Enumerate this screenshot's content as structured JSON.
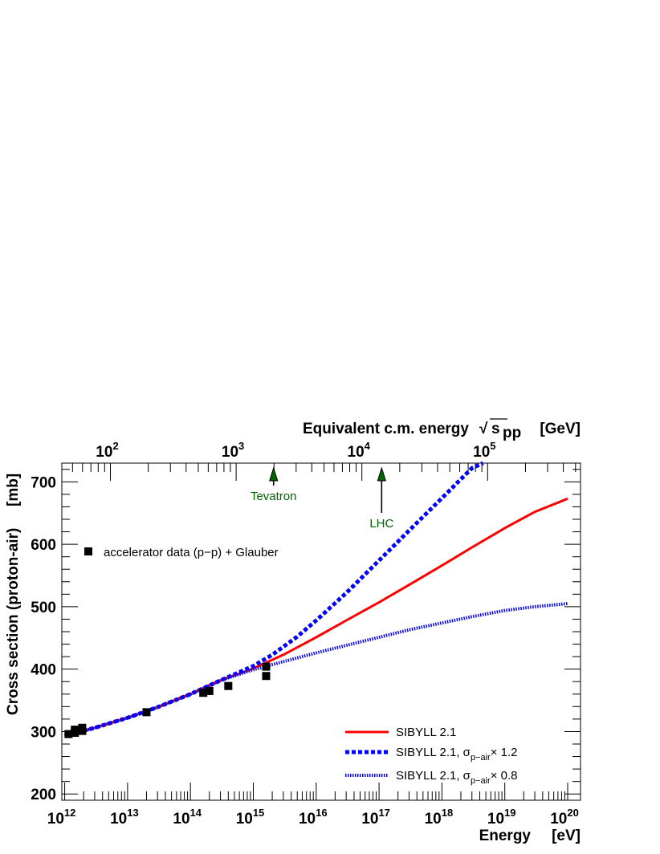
{
  "chart_data": {
    "type": "line",
    "xlabel": "Energy",
    "xlabel_unit": "[eV]",
    "ylabel": "Cross section (proton-air)",
    "ylabel_unit": "[mb]",
    "top_axis_label": "Equivalent c.m. energy",
    "top_axis_sqrt": "√",
    "top_axis_s": "s",
    "top_axis_sub": "pp",
    "top_axis_unit": "[GeV]",
    "x_scale": "log",
    "xlim": [
      900000000000.0,
      1.6e+20
    ],
    "ylim": [
      190,
      730
    ],
    "x_tick_labels": [
      {
        "value": 1000000000000.0,
        "base": "10",
        "exp": "12"
      },
      {
        "value": 10000000000000.0,
        "base": "10",
        "exp": "13"
      },
      {
        "value": 100000000000000.0,
        "base": "10",
        "exp": "14"
      },
      {
        "value": 1000000000000000.0,
        "base": "10",
        "exp": "15"
      },
      {
        "value": 1e+16,
        "base": "10",
        "exp": "16"
      },
      {
        "value": 1e+17,
        "base": "10",
        "exp": "17"
      },
      {
        "value": 1e+18,
        "base": "10",
        "exp": "18"
      },
      {
        "value": 1e+19,
        "base": "10",
        "exp": "19"
      },
      {
        "value": 1e+20,
        "base": "10",
        "exp": "20"
      }
    ],
    "y_ticks": [
      200,
      300,
      400,
      500,
      600,
      700
    ],
    "top_tick_labels": [
      {
        "gev": 100,
        "base": "10",
        "exp": "2"
      },
      {
        "gev": 1000,
        "base": "10",
        "exp": "3"
      },
      {
        "gev": 10000,
        "base": "10",
        "exp": "4"
      },
      {
        "gev": 100000,
        "base": "10",
        "exp": "5"
      }
    ],
    "series": [
      {
        "name": "SIBYLL 2.1",
        "color": "#ff0000",
        "style": "solid",
        "points": [
          [
            1000000000000.0,
            293
          ],
          [
            3000000000000.0,
            306
          ],
          [
            10000000000000.0,
            322
          ],
          [
            30000000000000.0,
            339
          ],
          [
            100000000000000.0,
            360
          ],
          [
            300000000000000.0,
            382
          ],
          [
            1000000000000000.0,
            401
          ],
          [
            3000000000000000.0,
            423
          ],
          [
            1e+16,
            451
          ],
          [
            3e+16,
            478
          ],
          [
            1e+17,
            507
          ],
          [
            3e+17,
            535
          ],
          [
            1e+18,
            566
          ],
          [
            3e+18,
            595
          ],
          [
            1e+19,
            626
          ],
          [
            3e+19,
            652
          ],
          [
            1e+20,
            673
          ]
        ]
      },
      {
        "name": "SIBYLL 2.1, σp-air× 1.2",
        "legend_main": "SIBYLL 2.1, σ",
        "legend_sub": "p−air",
        "legend_tail": "× 1.2",
        "color": "#0000ff",
        "style": "dashed-thick",
        "points": [
          [
            1000000000000.0,
            293
          ],
          [
            3000000000000.0,
            306
          ],
          [
            10000000000000.0,
            322
          ],
          [
            30000000000000.0,
            339
          ],
          [
            100000000000000.0,
            360
          ],
          [
            300000000000000.0,
            382
          ],
          [
            1000000000000000.0,
            405
          ],
          [
            2000000000000000.0,
            423
          ],
          [
            5000000000000000.0,
            452
          ],
          [
            1e+16,
            478
          ],
          [
            3e+16,
            522
          ],
          [
            1e+17,
            574
          ],
          [
            3e+17,
            622
          ],
          [
            1e+18,
            674
          ],
          [
            3e+18,
            722
          ],
          [
            4.5e+18,
            738
          ]
        ]
      },
      {
        "name": "SIBYLL 2.1, σp-air× 0.8",
        "legend_main": "SIBYLL 2.1, σ",
        "legend_sub": "p−air",
        "legend_tail": "× 0.8",
        "color": "#0000ff",
        "style": "dotted",
        "points": [
          [
            1000000000000.0,
            293
          ],
          [
            3000000000000.0,
            306
          ],
          [
            10000000000000.0,
            322
          ],
          [
            30000000000000.0,
            339
          ],
          [
            100000000000000.0,
            360
          ],
          [
            300000000000000.0,
            382
          ],
          [
            1000000000000000.0,
            399
          ],
          [
            3000000000000000.0,
            412
          ],
          [
            1e+16,
            426
          ],
          [
            3e+16,
            438
          ],
          [
            1e+17,
            451
          ],
          [
            3e+17,
            463
          ],
          [
            1e+18,
            474
          ],
          [
            3e+18,
            484
          ],
          [
            1e+19,
            494
          ],
          [
            3e+19,
            500
          ],
          [
            1e+20,
            505
          ]
        ]
      }
    ],
    "data_points": {
      "name": "accelerator data (p−p) + Glauber",
      "points": [
        [
          1150000000000.0,
          296
        ],
        [
          1450000000000.0,
          303
        ],
        [
          1450000000000.0,
          298
        ],
        [
          1900000000000.0,
          306
        ],
        [
          1900000000000.0,
          301
        ],
        [
          20000000000000.0,
          331
        ],
        [
          160000000000000.0,
          362
        ],
        [
          200000000000000.0,
          365
        ],
        [
          400000000000000.0,
          373
        ],
        [
          1600000000000000.0,
          404
        ],
        [
          1600000000000000.0,
          389
        ]
      ]
    },
    "annotations": [
      {
        "label": "Tevatron",
        "energy": 2100000000000000.0,
        "color": "#006400"
      },
      {
        "label": "LHC",
        "energy": 1.1e+17,
        "color": "#006400"
      }
    ],
    "grid": false,
    "legend_position": "bottom-right"
  }
}
